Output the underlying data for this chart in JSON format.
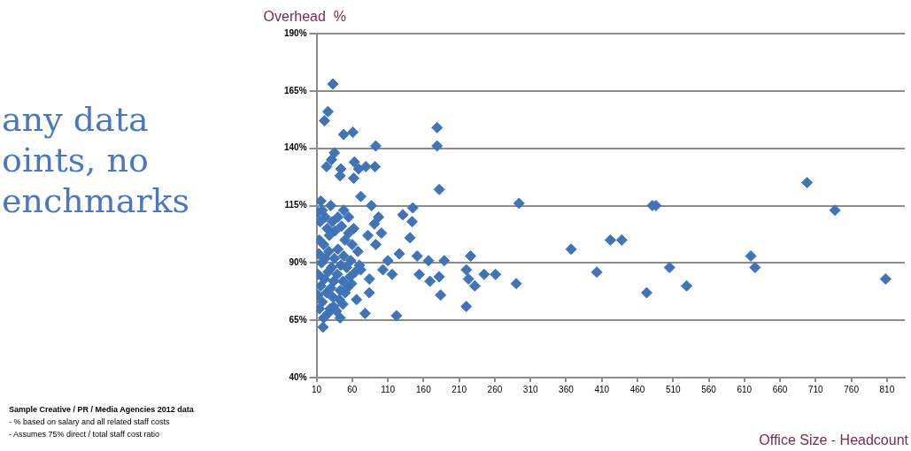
{
  "chart_data": {
    "type": "scatter",
    "ylabel": "Overhead  %",
    "xlabel": "Office Size - Headcount",
    "annotations": [
      "any data\noints, no\nenchmarks",
      "Sample Creative / PR / Media Agencies 2012 data",
      "- % based on salary and all related staff costs",
      "- Assumes  75% direct / total staff cost ratio"
    ],
    "xlim": [
      10,
      835
    ],
    "xticks": [
      10,
      60,
      110,
      160,
      210,
      260,
      310,
      360,
      410,
      460,
      510,
      560,
      610,
      660,
      710,
      760,
      810
    ],
    "ylim": [
      40,
      190
    ],
    "yticks": [
      {
        "value": 40,
        "label": "40%"
      },
      {
        "value": 65,
        "label": "65%"
      },
      {
        "value": 90,
        "label": "90%"
      },
      {
        "value": 115,
        "label": "115%"
      },
      {
        "value": 140,
        "label": "140%"
      },
      {
        "value": 165,
        "label": "165%"
      },
      {
        "value": 190,
        "label": "190%"
      }
    ],
    "grid": "y",
    "marker": "diamond",
    "legend": false,
    "series": [
      {
        "color": "#3f74b8",
        "x": [
          33,
          26,
          21,
          35,
          31,
          48,
          61,
          24,
          44,
          43,
          63,
          62,
          69,
          79,
          93,
          92,
          179,
          179,
          182,
          294,
          698,
          737,
          481,
          486,
          367,
          422,
          438,
          403,
          473,
          505,
          529,
          619,
          625,
          808,
          72,
          87,
          97,
          91,
          82,
          101,
          93,
          131,
          145,
          144,
          141,
          126,
          151,
          167,
          189,
          154,
          169,
          182,
          184,
          220,
          226,
          223,
          232,
          220,
          245,
          261,
          290,
          122,
          78,
          43,
          19,
          34,
          47,
          110,
          103,
          116,
          84,
          72,
          59,
          84,
          66,
          12,
          15,
          18,
          22,
          25,
          14,
          20,
          28,
          32,
          36,
          40,
          45,
          50,
          55,
          60,
          13,
          17,
          22,
          27,
          31,
          35,
          40,
          44,
          48,
          52,
          58,
          64,
          70,
          12,
          16,
          21,
          26,
          30,
          34,
          39,
          43,
          47,
          53,
          57,
          12,
          18,
          24,
          29,
          33,
          38,
          42,
          50,
          14,
          20,
          26,
          68,
          62,
          55,
          48,
          30,
          16
        ],
        "values": [
          168,
          156,
          152,
          138,
          135,
          146,
          147,
          132,
          131,
          128,
          134,
          127,
          131,
          132,
          141,
          132,
          149,
          141,
          122,
          116,
          125,
          113,
          115,
          115,
          96,
          100,
          100,
          86,
          77,
          88,
          80,
          93,
          88,
          83,
          119,
          115,
          110,
          107,
          102,
          103,
          98,
          111,
          114,
          108,
          101,
          94,
          93,
          91,
          91,
          85,
          82,
          84,
          76,
          87,
          93,
          83,
          80,
          71,
          85,
          85,
          81,
          67,
          68,
          66,
          62,
          71,
          72,
          91,
          87,
          85,
          83,
          87,
          81,
          77,
          74,
          112,
          108,
          113,
          110,
          105,
          100,
          98,
          102,
          108,
          104,
          110,
          106,
          100,
          103,
          98,
          94,
          90,
          92,
          95,
          88,
          92,
          96,
          89,
          93,
          88,
          91,
          86,
          89,
          85,
          80,
          83,
          86,
          79,
          82,
          85,
          78,
          82,
          79,
          84,
          76,
          73,
          77,
          70,
          75,
          69,
          74,
          77,
          70,
          66,
          68,
          95,
          105,
          110,
          113,
          115,
          117
        ]
      }
    ]
  }
}
